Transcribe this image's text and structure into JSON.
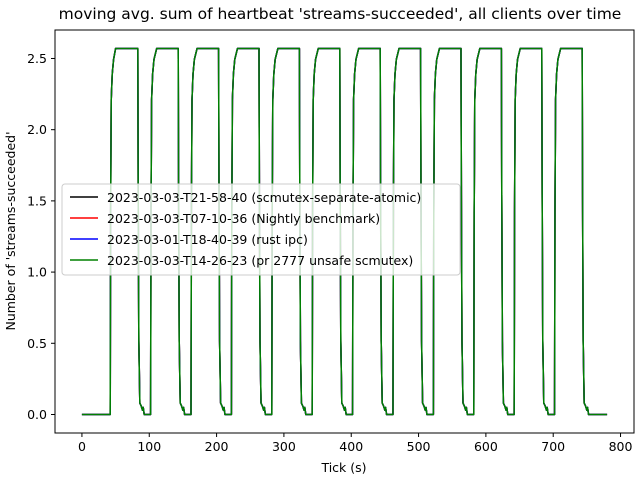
{
  "chart_data": {
    "type": "line",
    "title": "moving avg. sum of heartbeat 'streams-succeeded', all clients over time",
    "xlabel": "Tick (s)",
    "ylabel": "Number of 'streams-succeeded'",
    "xlim": [
      -40,
      820
    ],
    "ylim": [
      -0.13,
      2.7
    ],
    "x_ticks": [
      0,
      100,
      200,
      300,
      400,
      500,
      600,
      700,
      800
    ],
    "y_ticks": [
      0.0,
      0.5,
      1.0,
      1.5,
      2.0,
      2.5
    ],
    "x_tick_labels": [
      "0",
      "100",
      "200",
      "300",
      "400",
      "500",
      "600",
      "700",
      "800"
    ],
    "y_tick_labels": [
      "0.0",
      "0.5",
      "1.0",
      "1.5",
      "2.0",
      "2.5"
    ],
    "grid": false,
    "legend_position": "center-left",
    "series": [
      {
        "name": "2023-03-03-T21-58-40 (scmutex-separate-atomic)",
        "color": "#000000"
      },
      {
        "name": "2023-03-03-T07-10-36 (Nightly benchmark)",
        "color": "#ff0000"
      },
      {
        "name": "2023-03-01-T18-40-39 (rust ipc)",
        "color": "#0000ff"
      },
      {
        "name": "2023-03-03-T14-26-23 (pr 2777 unsafe scmutex)",
        "color": "#008000"
      }
    ],
    "pulses": [
      {
        "rise": 42,
        "high_start": 50,
        "fall": 83,
        "low_end": 98,
        "level": 2.57
      },
      {
        "rise": 102,
        "high_start": 111,
        "fall": 143,
        "low_end": 158,
        "level": 2.57
      },
      {
        "rise": 162,
        "high_start": 171,
        "fall": 203,
        "low_end": 218,
        "level": 2.57
      },
      {
        "rise": 222,
        "high_start": 231,
        "fall": 263,
        "low_end": 278,
        "level": 2.57
      },
      {
        "rise": 282,
        "high_start": 291,
        "fall": 323,
        "low_end": 338,
        "level": 2.57
      },
      {
        "rise": 342,
        "high_start": 351,
        "fall": 383,
        "low_end": 398,
        "level": 2.57
      },
      {
        "rise": 402,
        "high_start": 411,
        "fall": 443,
        "low_end": 458,
        "level": 2.57
      },
      {
        "rise": 462,
        "high_start": 471,
        "fall": 503,
        "low_end": 518,
        "level": 2.57
      },
      {
        "rise": 522,
        "high_start": 531,
        "fall": 563,
        "low_end": 578,
        "level": 2.57
      },
      {
        "rise": 582,
        "high_start": 591,
        "fall": 623,
        "low_end": 638,
        "level": 2.57
      },
      {
        "rise": 642,
        "high_start": 651,
        "fall": 683,
        "low_end": 698,
        "level": 2.57
      },
      {
        "rise": 702,
        "high_start": 711,
        "fall": 743,
        "low_end": 758,
        "level": 2.57
      }
    ],
    "x_range_data": [
      0,
      780
    ]
  }
}
